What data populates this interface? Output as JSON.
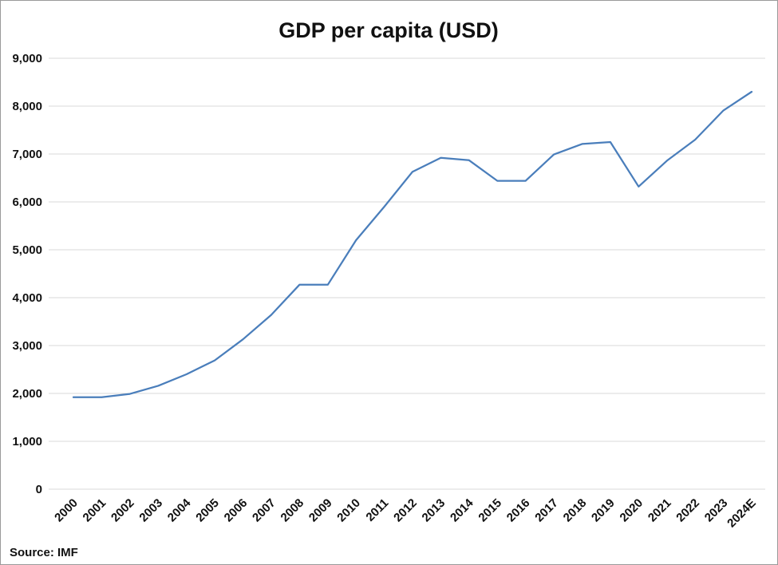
{
  "chart_data": {
    "type": "line",
    "title": "GDP per capita (USD)",
    "xlabel": "",
    "ylabel": "",
    "categories": [
      "2000",
      "2001",
      "2002",
      "2003",
      "2004",
      "2005",
      "2006",
      "2007",
      "2008",
      "2009",
      "2010",
      "2011",
      "2012",
      "2013",
      "2014",
      "2015",
      "2016",
      "2017",
      "2018",
      "2019",
      "2020",
      "2021",
      "2022",
      "2023",
      "2024E"
    ],
    "series": [
      {
        "color": "#4a7ebb",
        "values": [
          1920,
          1920,
          1990,
          2160,
          2400,
          2690,
          3130,
          3640,
          4270,
          4270,
          5200,
          5900,
          6630,
          6920,
          6870,
          6440,
          6440,
          6990,
          7210,
          7250,
          6320,
          6860,
          7300,
          7910,
          8300
        ]
      }
    ],
    "ylim": [
      0,
      9000
    ],
    "yticks": [
      0,
      1000,
      2000,
      3000,
      4000,
      5000,
      6000,
      7000,
      8000,
      9000
    ],
    "ytick_labels": [
      "0",
      "1,000",
      "2,000",
      "3,000",
      "4,000",
      "5,000",
      "6,000",
      "7,000",
      "8,000",
      "9,000"
    ],
    "grid": true,
    "legend": "none",
    "gridline_color": "#d9d9d9",
    "source_note": "Source: IMF"
  }
}
